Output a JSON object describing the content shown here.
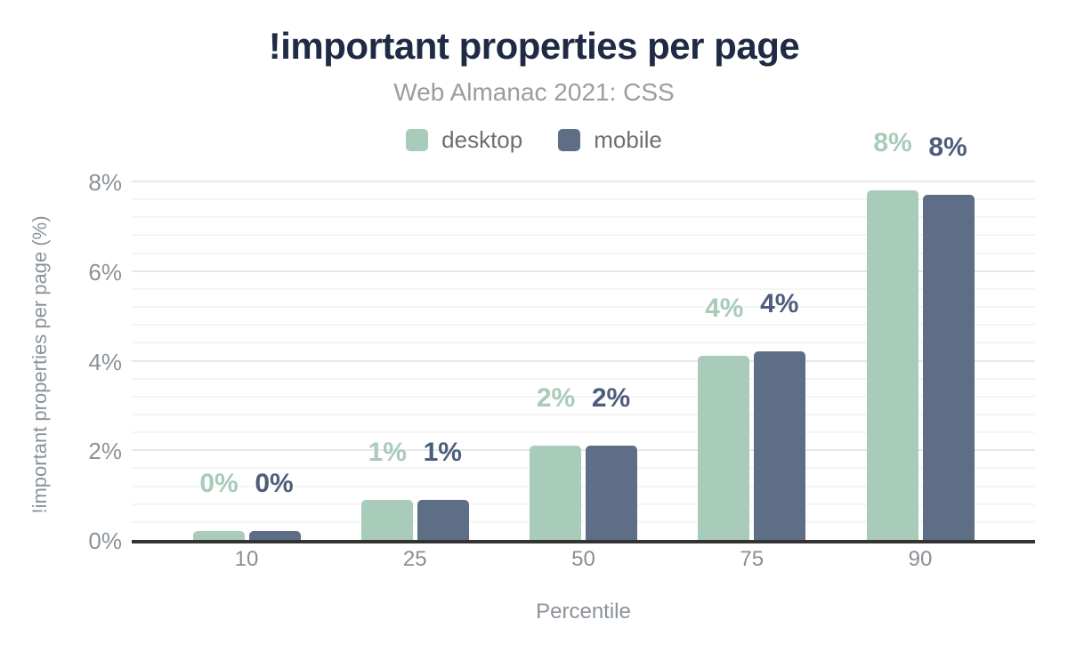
{
  "chart": {
    "title": "!important properties per page",
    "subtitle": "Web Almanac 2021: CSS",
    "xlabel": "Percentile",
    "ylabel": "!important properties per page (%)"
  },
  "legend": {
    "items": [
      {
        "label": "desktop",
        "color": "#a8cbba"
      },
      {
        "label": "mobile",
        "color": "#5f6e87"
      }
    ]
  },
  "colors": {
    "title": "#1f2b45",
    "subtitle": "#9a9da0",
    "axis_text": "#8b9298",
    "axis_line": "#333333",
    "gridline_major": "#e7e7e7",
    "gridline_minor": "#f5f5f5",
    "desktop": "#a8cbba",
    "mobile": "#5f6e87",
    "desktop_label": "#a8cbba",
    "mobile_label": "#4d5e7a"
  },
  "chart_data": {
    "type": "bar",
    "title": "!important properties per page",
    "subtitle": "Web Almanac 2021: CSS",
    "xlabel": "Percentile",
    "ylabel": "!important properties per page (%)",
    "categories": [
      "10",
      "25",
      "50",
      "75",
      "90"
    ],
    "series": [
      {
        "name": "desktop",
        "color": "#a8cbba",
        "label_color": "#a8cbba",
        "values": [
          0.2,
          0.9,
          2.1,
          4.1,
          7.8
        ],
        "data_labels": [
          "0%",
          "1%",
          "2%",
          "4%",
          "8%"
        ]
      },
      {
        "name": "mobile",
        "color": "#5f6e87",
        "label_color": "#4d5e7a",
        "values": [
          0.2,
          0.9,
          2.1,
          4.2,
          7.7
        ],
        "data_labels": [
          "0%",
          "1%",
          "2%",
          "4%",
          "8%"
        ]
      }
    ],
    "ylim": [
      0,
      8
    ],
    "ytick_values": [
      0,
      2,
      4,
      6,
      8
    ],
    "ytick_labels": [
      "0%",
      "2%",
      "4%",
      "6%",
      "8%"
    ],
    "grid": "horizontal, major every 2%, minor every 0.4%",
    "legend_position": "top-center"
  }
}
